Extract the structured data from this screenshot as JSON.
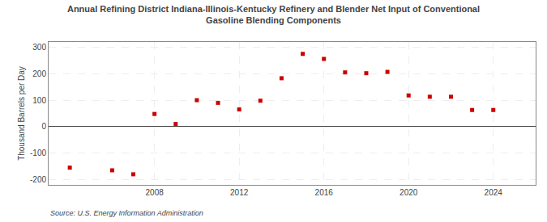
{
  "chart_data": {
    "type": "scatter",
    "title": "Annual Refining District Indiana-Illinois-Kentucky Refinery and Blender Net Input of Conventional",
    "subtitle": "Gasoline Blending Components",
    "ylabel": "Thousand Barrels per Day",
    "annotations": [
      "Source: U.S. Energy Information Administration"
    ],
    "x": [
      2004,
      2006,
      2007,
      2008,
      2009,
      2010,
      2011,
      2012,
      2013,
      2014,
      2015,
      2016,
      2017,
      2018,
      2019,
      2020,
      2021,
      2022,
      2023,
      2024
    ],
    "values": [
      -155,
      -165,
      -180,
      48,
      10,
      100,
      90,
      65,
      98,
      183,
      275,
      256,
      205,
      202,
      207,
      118,
      113,
      113,
      63,
      63
    ],
    "color": "#cc0000",
    "marker": "square",
    "xlim": [
      2003,
      2026
    ],
    "xticks": [
      2008,
      2012,
      2016,
      2020,
      2024
    ],
    "ylim": [
      -220,
      320
    ],
    "yticks": [
      -200,
      -100,
      0,
      100,
      200,
      300
    ],
    "grid": true
  }
}
